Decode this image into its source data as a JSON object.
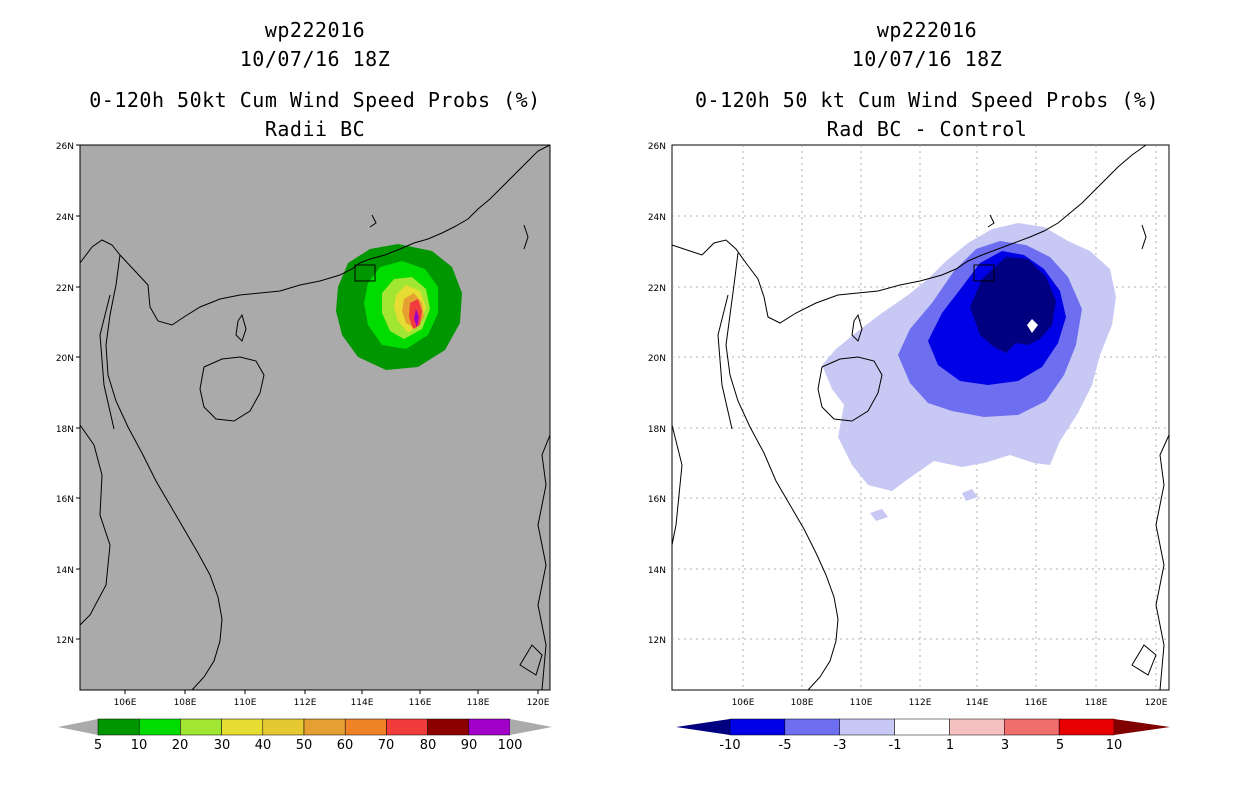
{
  "left_panel": {
    "storm_id": "wp222016",
    "datetime": "10/07/16 18Z",
    "title": "0-120h 50kt Cum Wind Speed Probs (%)",
    "subtitle": "Radii BC",
    "background_color": "#aaaaaa",
    "lat_ticks": [
      "26N",
      "24N",
      "22N",
      "20N",
      "18N",
      "16N",
      "14N",
      "12N"
    ],
    "lon_ticks": [
      "106E",
      "108E",
      "110E",
      "112E",
      "114E",
      "116E",
      "118E",
      "120E"
    ],
    "colorbar": {
      "labels": [
        "5",
        "10",
        "20",
        "30",
        "40",
        "50",
        "60",
        "70",
        "80",
        "90",
        "100"
      ],
      "colors": [
        "#009600",
        "#00dc00",
        "#a0e632",
        "#e6dc32",
        "#e6c832",
        "#e6a032",
        "#f08228",
        "#f03c3c",
        "#8c0000",
        "#a000c8"
      ]
    }
  },
  "right_panel": {
    "storm_id": "wp222016",
    "datetime": "10/07/16 18Z",
    "title": "0-120h 50 kt Cum Wind Speed Probs (%)",
    "subtitle": "Rad BC - Control",
    "lat_ticks": [
      "26N",
      "24N",
      "22N",
      "20N",
      "18N",
      "16N",
      "14N",
      "12N"
    ],
    "lon_ticks": [
      "106E",
      "108E",
      "110E",
      "112E",
      "114E",
      "116E",
      "118E",
      "120E"
    ],
    "colorbar": {
      "labels": [
        "-10",
        "-5",
        "-3",
        "-1",
        "1",
        "3",
        "5",
        "10"
      ],
      "colors": [
        "#000080",
        "#0000e6",
        "#6e6ef0",
        "#c8c8f5",
        "#ffffff",
        "#f5c0c0",
        "#f06e6e",
        "#e60000",
        "#800000"
      ]
    }
  }
}
